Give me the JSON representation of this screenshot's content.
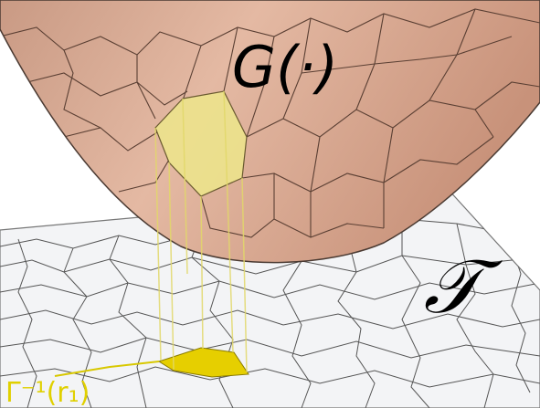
{
  "labels": {
    "surface": "G(·)",
    "plane": "𝒯",
    "region": "Γ⁻¹(r₁)"
  }
}
